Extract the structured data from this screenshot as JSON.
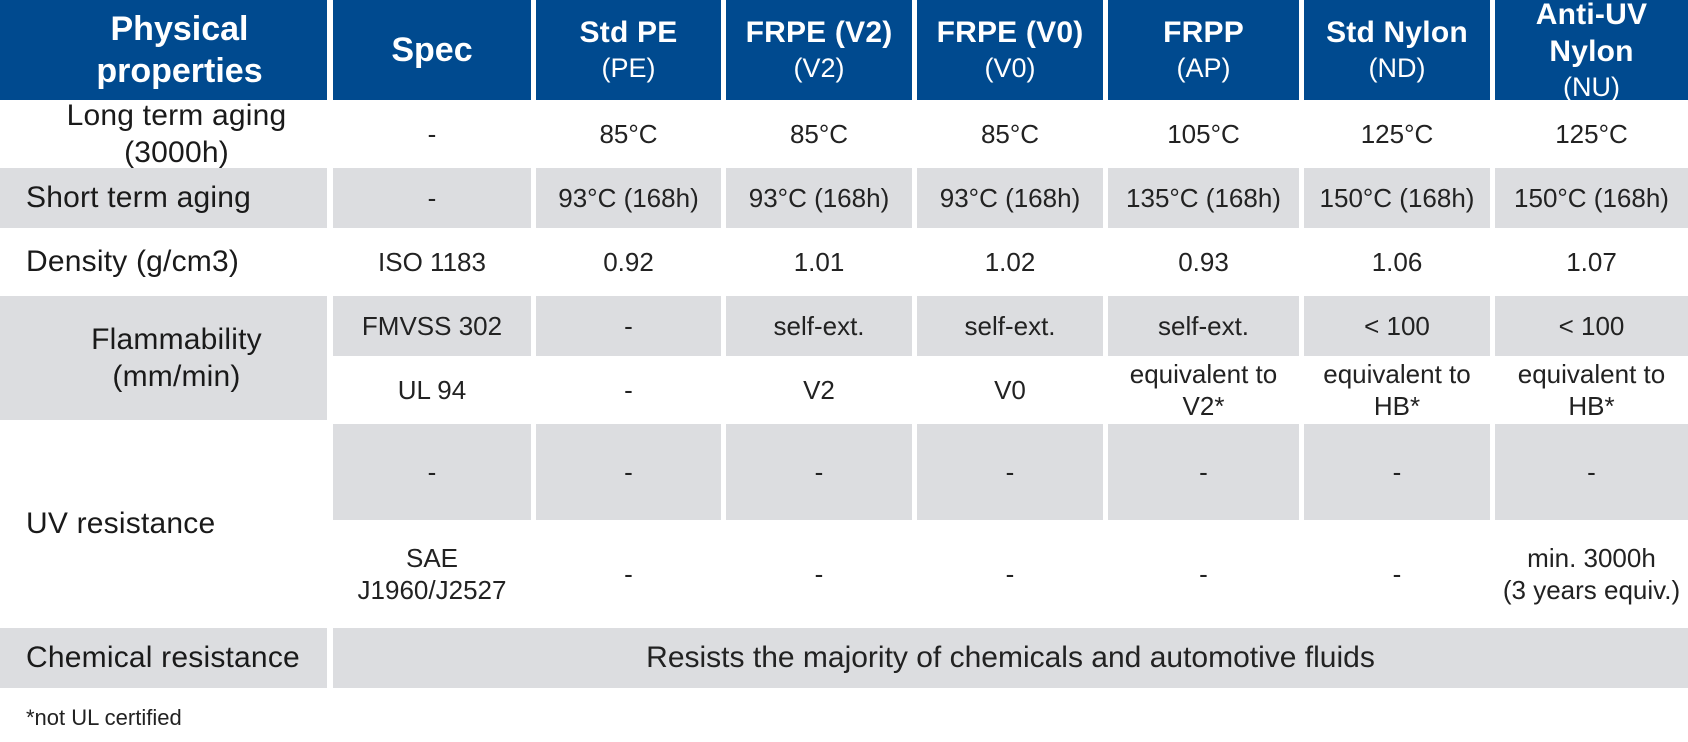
{
  "header": {
    "property_label": "Physical properties",
    "spec_label": "Spec",
    "columns": [
      {
        "name": "Std PE",
        "code": "(PE)"
      },
      {
        "name": "FRPE (V2)",
        "code": "(V2)"
      },
      {
        "name": "FRPE (V0)",
        "code": "(V0)"
      },
      {
        "name": "FRPP",
        "code": "(AP)"
      },
      {
        "name": "Std Nylon",
        "code": "(ND)"
      },
      {
        "name": "Anti-UV Nylon",
        "code": "(NU)"
      }
    ]
  },
  "rows": [
    {
      "property": "Long term aging (3000h)",
      "spec": "-",
      "values": [
        "85°C",
        "85°C",
        "85°C",
        "105°C",
        "125°C",
        "125°C"
      ]
    },
    {
      "property": "Short term aging",
      "spec": "-",
      "values": [
        "93°C (168h)",
        "93°C (168h)",
        "93°C (168h)",
        "135°C (168h)",
        "150°C (168h)",
        "150°C (168h)"
      ]
    },
    {
      "property": "Density (g/cm3)",
      "spec": "ISO 1183",
      "values": [
        "0.92",
        "1.01",
        "1.02",
        "0.93",
        "1.06",
        "1.07"
      ]
    },
    {
      "property": "Flammability (mm/min)",
      "sub": [
        {
          "spec": "FMVSS 302",
          "values": [
            "-",
            "self-ext.",
            "self-ext.",
            "self-ext.",
            "< 100",
            "< 100"
          ]
        },
        {
          "spec": "UL 94",
          "values": [
            "-",
            "V2",
            "V0",
            "equivalent to V2*",
            "equivalent to HB*",
            "equivalent to HB*"
          ]
        }
      ]
    },
    {
      "property": "UV resistance",
      "sub": [
        {
          "spec": "-",
          "values": [
            "-",
            "-",
            "-",
            "-",
            "-",
            "-"
          ]
        },
        {
          "spec": "SAE J1960/J2527",
          "values": [
            "-",
            "-",
            "-",
            "-",
            "-",
            "min. 3000h"
          ],
          "last_extra": "(3 years equiv.)"
        }
      ]
    },
    {
      "property": "Chemical resistance",
      "merged": "Resists the majority of chemicals and automotive fluids"
    }
  ],
  "footnote": "*not UL certified"
}
